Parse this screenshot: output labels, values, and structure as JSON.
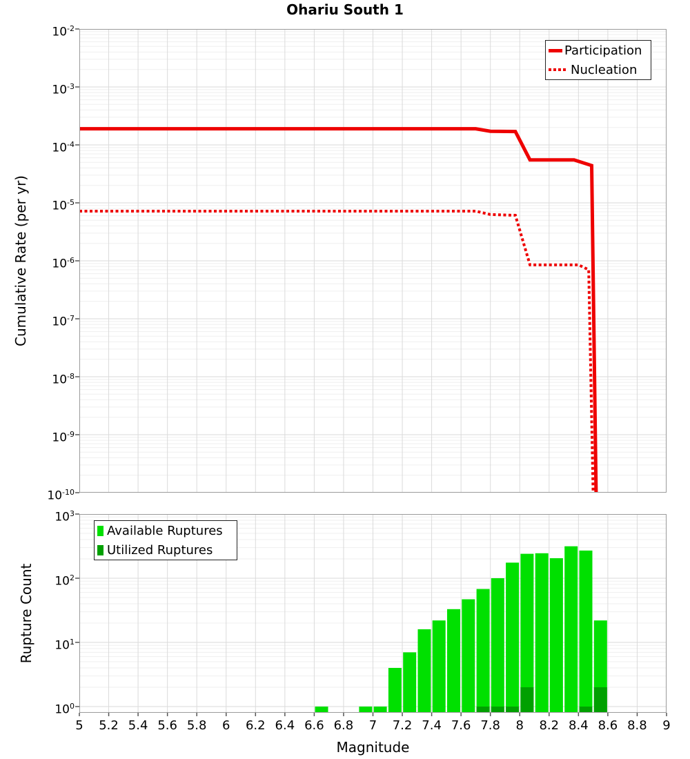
{
  "title": "Ohariu South 1",
  "colors": {
    "line_red": "#EE0000",
    "available_green": "#00E000",
    "utilized_green": "#00A000",
    "grid_major": "#DADADA",
    "grid_minor": "#EFEFEF",
    "plot_border": "#9A9A9A",
    "tick_color": "#555555"
  },
  "x_axis": {
    "label": "Magnitude",
    "min": 5,
    "max": 9,
    "tick_step": 0.2,
    "tick_labels": [
      "5",
      "5.2",
      "5.4",
      "5.6",
      "5.8",
      "6",
      "6.2",
      "6.4",
      "6.6",
      "6.8",
      "7",
      "7.2",
      "7.4",
      "7.6",
      "7.8",
      "8",
      "8.2",
      "8.4",
      "8.6",
      "8.8",
      "9"
    ]
  },
  "top_chart": {
    "ylabel": "Cumulative Rate (per yr)",
    "y_tick_exponents": [
      -2,
      -3,
      -4,
      -5,
      -6,
      -7,
      -8,
      -9,
      -10
    ]
  },
  "bottom_chart": {
    "ylabel": "Rupture Count",
    "y_tick_exponents": [
      3,
      2,
      1,
      0
    ]
  },
  "chart_data": [
    {
      "type": "line",
      "title": "Ohariu South 1",
      "xlabel": "Magnitude",
      "ylabel": "Cumulative Rate (per yr)",
      "xlim": [
        5,
        9
      ],
      "ylim": [
        1e-10,
        0.01
      ],
      "yscale": "log",
      "grid": true,
      "legend_position": "top-right",
      "series": [
        {
          "name": "Participation",
          "style": "solid",
          "color": "#EE0000",
          "points": [
            [
              5.0,
              0.00019
            ],
            [
              7.7,
              0.00019
            ],
            [
              7.8,
              0.000172
            ],
            [
              7.97,
              0.00017
            ],
            [
              8.07,
              5.5e-05
            ],
            [
              8.37,
              5.5e-05
            ],
            [
              8.49,
              4.4e-05
            ],
            [
              8.52,
              1e-10
            ]
          ]
        },
        {
          "name": "Nucleation",
          "style": "dotted",
          "color": "#EE0000",
          "points": [
            [
              5.0,
              7.2e-06
            ],
            [
              7.7,
              7.2e-06
            ],
            [
              7.8,
              6.3e-06
            ],
            [
              7.97,
              6.1e-06
            ],
            [
              8.07,
              8.5e-07
            ],
            [
              8.4,
              8.5e-07
            ],
            [
              8.47,
              7e-07
            ],
            [
              8.5,
              1e-10
            ]
          ]
        }
      ]
    },
    {
      "type": "bar",
      "xlabel": "Magnitude",
      "ylabel": "Rupture Count",
      "xlim": [
        5,
        9
      ],
      "ylim": [
        1,
        1000
      ],
      "yscale": "log",
      "bin_width": 0.1,
      "grid": true,
      "legend_position": "top-left",
      "series": [
        {
          "name": "Available Ruptures",
          "color": "#00E000",
          "bins": [
            [
              6.65,
              1
            ],
            [
              6.95,
              1
            ],
            [
              7.05,
              1
            ],
            [
              7.15,
              4
            ],
            [
              7.25,
              7
            ],
            [
              7.35,
              16
            ],
            [
              7.45,
              22
            ],
            [
              7.55,
              33
            ],
            [
              7.65,
              47
            ],
            [
              7.75,
              68
            ],
            [
              7.85,
              100
            ],
            [
              7.95,
              175
            ],
            [
              8.05,
              240
            ],
            [
              8.15,
              245
            ],
            [
              8.25,
              205
            ],
            [
              8.35,
              315
            ],
            [
              8.45,
              270
            ],
            [
              8.55,
              22
            ]
          ]
        },
        {
          "name": "Utilized Ruptures",
          "color": "#00A000",
          "bins": [
            [
              7.75,
              1
            ],
            [
              7.85,
              1
            ],
            [
              7.95,
              1
            ],
            [
              8.05,
              2
            ],
            [
              8.45,
              1
            ],
            [
              8.55,
              2
            ]
          ]
        }
      ]
    }
  ]
}
